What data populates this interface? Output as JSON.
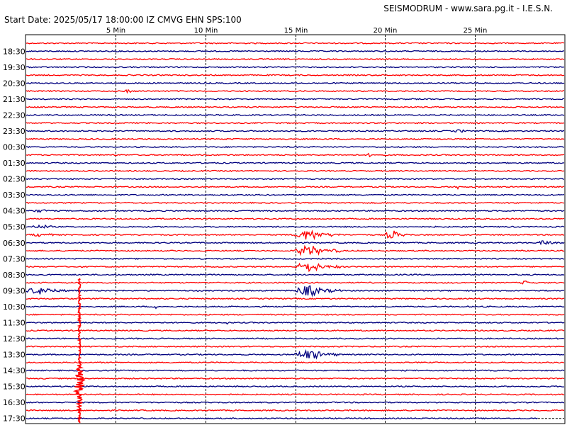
{
  "header": {
    "title": "SEISMODRUM - www.sara.pg.it - I.E.S.N.",
    "start_date": "Start Date: 2025/05/17 18:00:00 IZ CMVG EHN SPS:100"
  },
  "colors": {
    "trace_a": "#ff0000",
    "trace_b": "#00007f",
    "grid": "#000000",
    "background": "#ffffff"
  },
  "chart_data": {
    "type": "line",
    "x_unit": "minutes",
    "xlim": [
      0,
      30
    ],
    "x_ticks": [
      {
        "value": 5,
        "label": "5 Min"
      },
      {
        "value": 10,
        "label": "10 Min"
      },
      {
        "value": 15,
        "label": "15 Min"
      },
      {
        "value": 20,
        "label": "20 Min"
      },
      {
        "value": 25,
        "label": "25 Min"
      }
    ],
    "row_labels": [
      "18:30",
      "19:30",
      "20:30",
      "21:30",
      "22:30",
      "23:30",
      "00:30",
      "01:30",
      "02:30",
      "03:30",
      "04:30",
      "05:30",
      "06:30",
      "07:30",
      "08:30",
      "09:30",
      "10:30",
      "11:30",
      "12:30",
      "13:30",
      "14:30",
      "15:30",
      "16:30",
      "17:30"
    ],
    "rows_total": 48,
    "events": [
      {
        "row": 6,
        "start": 5.5,
        "end": 6.2,
        "amp": 0.25
      },
      {
        "row": 11,
        "start": 23.8,
        "end": 24.9,
        "amp": 0.2
      },
      {
        "row": 14,
        "start": 19.0,
        "end": 19.6,
        "amp": 0.25
      },
      {
        "row": 18,
        "start": 24.0,
        "end": 24.2,
        "amp": 0.3
      },
      {
        "row": 21,
        "start": 0.2,
        "end": 2.2,
        "amp": 0.18
      },
      {
        "row": 23,
        "start": 0.2,
        "end": 2.5,
        "amp": 0.22
      },
      {
        "row": 24,
        "start": 0.2,
        "end": 2.5,
        "amp": 0.22
      },
      {
        "row": 24,
        "start": 15.0,
        "end": 17.5,
        "amp": 0.65
      },
      {
        "row": 24,
        "start": 20.0,
        "end": 21.3,
        "amp": 0.55
      },
      {
        "row": 25,
        "start": 28.5,
        "end": 30.0,
        "amp": 0.3
      },
      {
        "row": 26,
        "start": 15.0,
        "end": 17.5,
        "amp": 0.65
      },
      {
        "row": 28,
        "start": 15.0,
        "end": 17.5,
        "amp": 0.6
      },
      {
        "row": 30,
        "start": 27.5,
        "end": 28.8,
        "amp": 0.25
      },
      {
        "row": 31,
        "start": 0.0,
        "end": 2.8,
        "amp": 0.45
      },
      {
        "row": 31,
        "start": 15.0,
        "end": 17.5,
        "amp": 0.65
      },
      {
        "row": 33,
        "start": 7.2,
        "end": 7.4,
        "amp": 0.45
      },
      {
        "row": 35,
        "start": 11.2,
        "end": 11.4,
        "amp": 0.3
      },
      {
        "row": 39,
        "start": 15.0,
        "end": 17.5,
        "amp": 0.6
      }
    ],
    "large_event": {
      "start_row": 30,
      "end_row": 47,
      "minute": 3.0,
      "peak_row": 43
    }
  }
}
